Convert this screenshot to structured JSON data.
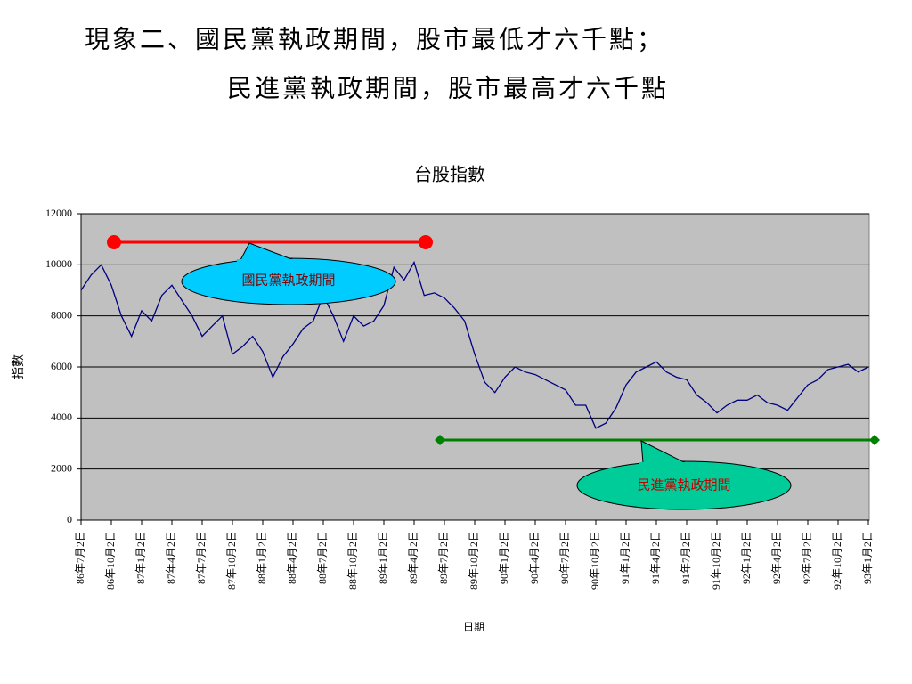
{
  "header": {
    "line1": "現象二、國民黨執政期間，股市最低才六千點；",
    "line2": "民進黨執政期間，股市最高才六千點"
  },
  "chart_data": {
    "type": "line",
    "title": "台股指數",
    "y_label": "指數",
    "x_label": "日期",
    "color": "#000080",
    "grid": true,
    "ylim": [
      0,
      12000
    ],
    "yticks": [
      0,
      2000,
      4000,
      6000,
      8000,
      10000,
      12000
    ],
    "categories": [
      "86年7月2日",
      null,
      null,
      "86年10月2日",
      null,
      null,
      "87年1月2日",
      null,
      null,
      "87年4月2日",
      null,
      null,
      "87年7月2日",
      null,
      null,
      "87年10月2日",
      null,
      null,
      "88年1月2日",
      null,
      null,
      "88年4月2日",
      null,
      null,
      "88年7月2日",
      null,
      null,
      "88年10月2日",
      null,
      null,
      "89年1月2日",
      null,
      null,
      "89年4月2日",
      null,
      null,
      "89年7月2日",
      null,
      null,
      "89年10月2日",
      null,
      null,
      "90年1月2日",
      null,
      null,
      "90年4月2日",
      null,
      null,
      "90年7月2日",
      null,
      null,
      "90年10月2日",
      null,
      null,
      "91年1月2日",
      null,
      null,
      "91年4月2日",
      null,
      null,
      "91年7月2日",
      null,
      null,
      "91年10月2日",
      null,
      null,
      "92年1月2日",
      null,
      null,
      "92年4月2日",
      null,
      null,
      "92年7月2日",
      null,
      null,
      "92年10月2日",
      null,
      null,
      "93年1月2日"
    ],
    "values": [
      9000,
      9600,
      10000,
      9200,
      8000,
      7200,
      8200,
      7800,
      8800,
      9200,
      8600,
      8000,
      7200,
      7600,
      8000,
      6500,
      6800,
      7200,
      6600,
      5600,
      6400,
      6900,
      7500,
      7800,
      8800,
      8000,
      7000,
      8000,
      7600,
      7800,
      8400,
      9900,
      9400,
      10100,
      8800,
      8900,
      8700,
      8300,
      7800,
      6500,
      5400,
      5000,
      5600,
      6000,
      5800,
      5700,
      5500,
      5300,
      5100,
      4500,
      4500,
      3600,
      3800,
      4400,
      5300,
      5800,
      6000,
      6200,
      5800,
      5600,
      5500,
      4900,
      4600,
      4200,
      4500,
      4700,
      4700,
      4900,
      4600,
      4500,
      4300,
      4800,
      5300,
      5500,
      5900,
      6000,
      6100,
      5800,
      6000
    ],
    "annotations": [
      "國民黨執政期間",
      "民進黨執政期間"
    ]
  }
}
